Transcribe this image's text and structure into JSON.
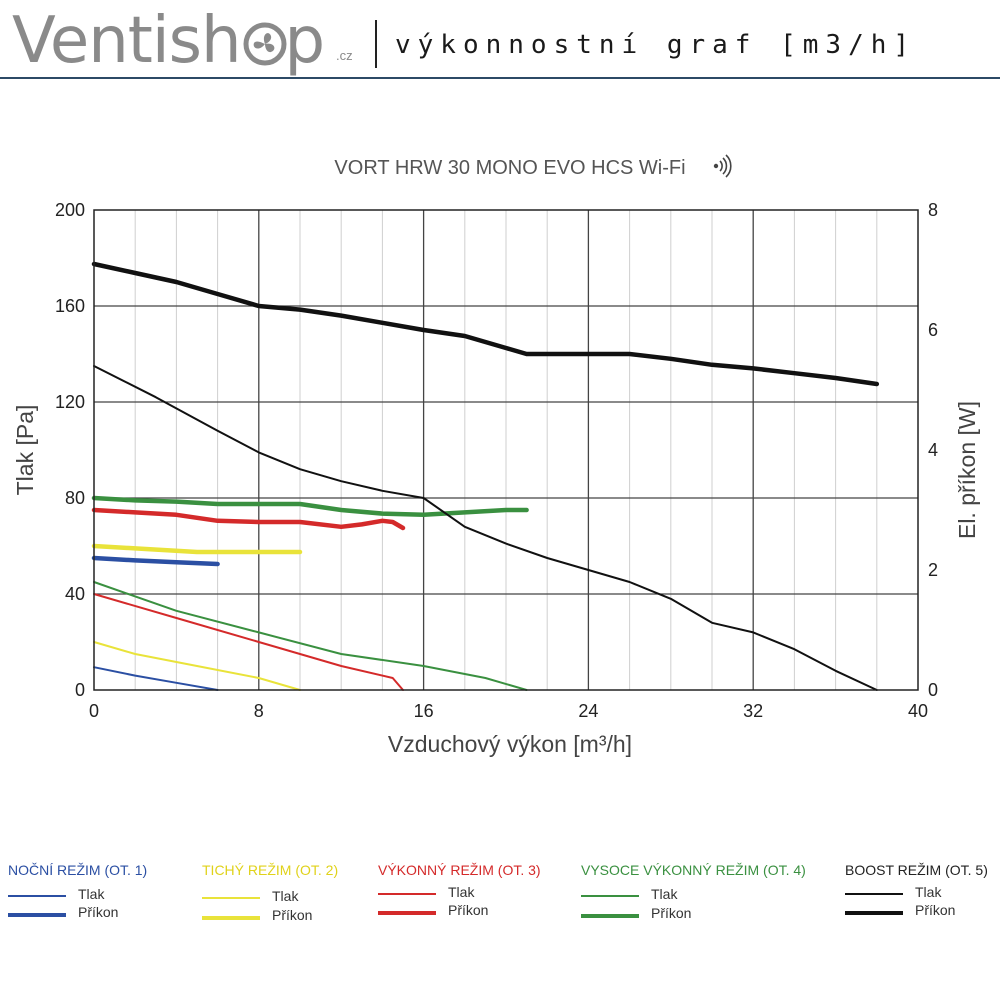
{
  "header": {
    "brand": "Ventishop",
    "brand_pre": "Ventish",
    "brand_post": "p",
    "brand_tld": ".cz",
    "title": "výkonnostní graf [m3/h]"
  },
  "chart_data": {
    "type": "line",
    "title": "VORT HRW 30 MONO EVO HCS Wi-Fi",
    "xlabel": "Vzduchový výkon [m³/h]",
    "ylabel": "Tlak [Pa]",
    "y2label": "El. příkon [W]",
    "xlim": [
      0,
      40
    ],
    "ylim": [
      0,
      200
    ],
    "y2lim": [
      0,
      8
    ],
    "xticks": [
      "0",
      "8",
      "16",
      "24",
      "32",
      "40"
    ],
    "yticks": [
      "0",
      "40",
      "80",
      "120",
      "160",
      "200"
    ],
    "y2ticks": [
      "0",
      "2",
      "4",
      "6",
      "8"
    ],
    "grid": true,
    "series": [
      {
        "name": "Noční režim – Tlak",
        "axis": "left",
        "color": "#2b4fa3",
        "weight": "thin",
        "x": [
          0,
          2,
          4,
          6
        ],
        "y": [
          9.5,
          6,
          3,
          0
        ]
      },
      {
        "name": "Noční režim – Příkon",
        "axis": "right",
        "color": "#2b4fa3",
        "weight": "thick",
        "x": [
          0,
          2,
          4,
          6
        ],
        "y": [
          2.2,
          2.16,
          2.13,
          2.1
        ]
      },
      {
        "name": "Tichý režim – Tlak",
        "axis": "left",
        "color": "#e9e33a",
        "weight": "thin",
        "x": [
          0,
          2,
          5,
          8,
          10
        ],
        "y": [
          20,
          15,
          10,
          5,
          0
        ]
      },
      {
        "name": "Tichý režim – Příkon",
        "axis": "right",
        "color": "#e9e33a",
        "weight": "thick",
        "x": [
          0,
          2,
          5,
          7.5,
          10
        ],
        "y": [
          2.4,
          2.36,
          2.3,
          2.3,
          2.3
        ]
      },
      {
        "name": "Výkonný režim – Tlak",
        "axis": "left",
        "color": "#d42a2a",
        "weight": "thin",
        "x": [
          0,
          4,
          8,
          12,
          14.5,
          15
        ],
        "y": [
          40,
          30,
          20,
          10,
          5,
          0
        ]
      },
      {
        "name": "Výkonný režim – Příkon",
        "axis": "right",
        "color": "#d42a2a",
        "weight": "thick",
        "x": [
          0,
          2,
          4,
          6,
          8,
          10,
          12,
          13,
          14,
          14.5,
          15
        ],
        "y": [
          3.0,
          2.96,
          2.92,
          2.82,
          2.8,
          2.8,
          2.72,
          2.76,
          2.82,
          2.8,
          2.7
        ]
      },
      {
        "name": "Vysoce výkonný režim – Tlak",
        "axis": "left",
        "color": "#3a9040",
        "weight": "thin",
        "x": [
          0,
          4,
          8,
          12,
          16,
          19,
          21
        ],
        "y": [
          45,
          33,
          24,
          15,
          10,
          5,
          0
        ]
      },
      {
        "name": "Vysoce výkonný režim – Příkon",
        "axis": "right",
        "color": "#3a9040",
        "weight": "thick",
        "x": [
          0,
          2,
          4,
          6,
          8,
          10,
          12,
          14,
          16,
          18,
          20,
          21
        ],
        "y": [
          3.2,
          3.16,
          3.14,
          3.1,
          3.1,
          3.1,
          3.0,
          2.94,
          2.92,
          2.96,
          3.0,
          3.0
        ]
      },
      {
        "name": "Boost režim – Tlak",
        "axis": "left",
        "color": "#111111",
        "weight": "thin",
        "x": [
          0,
          3,
          6,
          8,
          10,
          12,
          14,
          16,
          18,
          20,
          22,
          24,
          26,
          28,
          30,
          32,
          34,
          36,
          38
        ],
        "y": [
          135,
          122,
          108,
          99,
          92,
          87,
          83,
          80,
          68,
          61,
          55,
          50,
          45,
          38,
          28,
          24,
          17,
          8,
          0
        ]
      },
      {
        "name": "Boost režim – Příkon",
        "axis": "right",
        "color": "#111111",
        "weight": "thick",
        "x": [
          0,
          2,
          4,
          6,
          8,
          10,
          12,
          14,
          16,
          18,
          20,
          21,
          22,
          24,
          26,
          28,
          30,
          32,
          34,
          36,
          38
        ],
        "y": [
          7.1,
          6.95,
          6.8,
          6.6,
          6.4,
          6.34,
          6.24,
          6.12,
          6.0,
          5.9,
          5.7,
          5.6,
          5.6,
          5.6,
          5.6,
          5.52,
          5.42,
          5.36,
          5.28,
          5.2,
          5.1
        ]
      }
    ]
  },
  "legend": [
    {
      "title": "NOČNÍ REŽIM (OT. 1)",
      "color": "#2b4fa3",
      "tlak": "Tlak",
      "prikon": "Příkon"
    },
    {
      "title": "TICHÝ REŽIM (OT. 2)",
      "color": "#e9e33a",
      "tlak": "Tlak",
      "prikon": "Příkon"
    },
    {
      "title": "VÝKONNÝ REŽIM (OT. 3)",
      "color": "#d42a2a",
      "tlak": "Tlak",
      "prikon": "Příkon"
    },
    {
      "title": "VYSOCE VÝKONNÝ REŽIM (OT. 4)",
      "color": "#3a9040",
      "tlak": "Tlak",
      "prikon": "Příkon"
    },
    {
      "title": "BOOST REŽIM (OT. 5)",
      "color": "#111111",
      "tlak": "Tlak",
      "prikon": "Příkon"
    }
  ]
}
